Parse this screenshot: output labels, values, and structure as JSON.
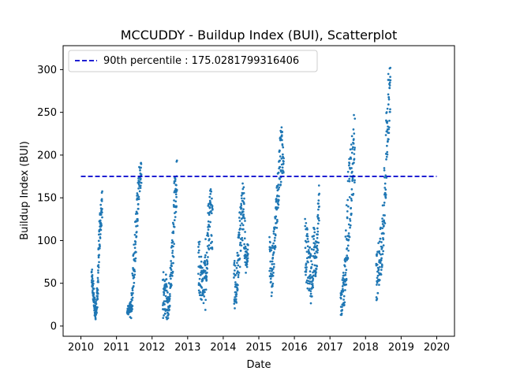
{
  "chart_data": {
    "type": "scatter",
    "title": "MCCUDDY - Buildup Index (BUI), Scatterplot",
    "xlabel": "Date",
    "ylabel": "Buildup Index (BUI)",
    "xlim": [
      2009.5,
      2020.5
    ],
    "ylim": [
      -12,
      328
    ],
    "x_ticks": [
      2010,
      2011,
      2012,
      2013,
      2014,
      2015,
      2016,
      2017,
      2018,
      2019,
      2020
    ],
    "x_tick_labels": [
      "2010",
      "2011",
      "2012",
      "2013",
      "2014",
      "2015",
      "2016",
      "2017",
      "2018",
      "2019",
      "2020"
    ],
    "y_ticks": [
      0,
      50,
      100,
      150,
      200,
      250,
      300
    ],
    "y_tick_labels": [
      "0",
      "50",
      "100",
      "150",
      "200",
      "250",
      "300"
    ],
    "grid": false,
    "legend_position": "top-left",
    "colors": {
      "points": "#1f77b4",
      "percentile_line": "#0000cd"
    },
    "percentile_line": {
      "label": "90th percentile : 175.0281799316406",
      "value": 175.0281799316406,
      "x_range": [
        2010,
        2020
      ],
      "style": "dashed"
    },
    "series": [
      {
        "seasons": [
          {
            "x": [
              2010.3,
              2010.6
            ],
            "y": [
              [
                50,
                76
              ],
              [
                30,
                55
              ],
              [
                10,
                35
              ],
              [
                5,
                28
              ],
              [
                25,
                60
              ],
              [
                80,
                125
              ],
              [
                110,
                150
              ],
              [
                125,
                162
              ]
            ]
          },
          {
            "x": [
              2011.3,
              2011.7
            ],
            "y": [
              [
                15,
                25
              ],
              [
                10,
                24
              ],
              [
                8,
                32
              ],
              [
                30,
                90
              ],
              [
                70,
                130
              ],
              [
                110,
                160
              ],
              [
                150,
                190
              ],
              [
                165,
                194
              ]
            ]
          },
          {
            "x": [
              2012.3,
              2012.7
            ],
            "y": [
              [
                5,
                60
              ],
              [
                15,
                75
              ],
              [
                5,
                40
              ],
              [
                20,
                60
              ],
              [
                50,
                120
              ],
              [
                100,
                180
              ],
              [
                150,
                196
              ]
            ]
          },
          {
            "x": [
              2013.3,
              2013.7
            ],
            "y": [
              [
                45,
                112
              ],
              [
                30,
                90
              ],
              [
                30,
                60
              ],
              [
                15,
                100
              ],
              [
                75,
                140
              ],
              [
                95,
                165
              ],
              [
                80,
                150
              ]
            ]
          },
          {
            "x": [
              2014.3,
              2014.7
            ],
            "y": [
              [
                18,
                100
              ],
              [
                25,
                60
              ],
              [
                50,
                120
              ],
              [
                80,
                160
              ],
              [
                100,
                178
              ],
              [
                60,
                100
              ],
              [
                75,
                95
              ]
            ]
          },
          {
            "x": [
              2015.3,
              2015.7
            ],
            "y": [
              [
                60,
                108
              ],
              [
                30,
                90
              ],
              [
                70,
                120
              ],
              [
                110,
                160
              ],
              [
                150,
                200
              ],
              [
                170,
                246
              ],
              [
                180,
                200
              ]
            ]
          },
          {
            "x": [
              2016.3,
              2016.7
            ],
            "y": [
              [
                60,
                132
              ],
              [
                40,
                110
              ],
              [
                25,
                90
              ],
              [
                45,
                120
              ],
              [
                60,
                100
              ],
              [
                110,
                180
              ]
            ]
          },
          {
            "x": [
              2017.3,
              2017.7
            ],
            "y": [
              [
                10,
                40
              ],
              [
                20,
                70
              ],
              [
                70,
                180
              ],
              [
                130,
                220
              ],
              [
                170,
                262
              ]
            ]
          },
          {
            "x": [
              2018.3,
              2018.7
            ],
            "y": [
              [
                28,
                80
              ],
              [
                40,
                110
              ],
              [
                60,
                120
              ],
              [
                100,
                200
              ],
              [
                200,
                290
              ],
              [
                250,
                313
              ]
            ]
          }
        ]
      }
    ]
  }
}
